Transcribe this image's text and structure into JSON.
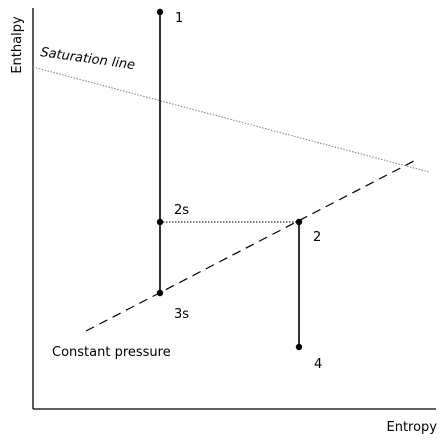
{
  "axes": {
    "x_label": "Entropy",
    "y_label": "Enthalpy"
  },
  "curves": {
    "saturation_label": "Saturation line",
    "constant_pressure_label": "Constant pressure"
  },
  "points": {
    "p1": "1",
    "p2s": "2s",
    "p2": "2",
    "p3s": "3s",
    "p4": "4"
  },
  "colors": {
    "ink": "#000000",
    "saturation_line": "#808080",
    "background": "#ffffff"
  }
}
